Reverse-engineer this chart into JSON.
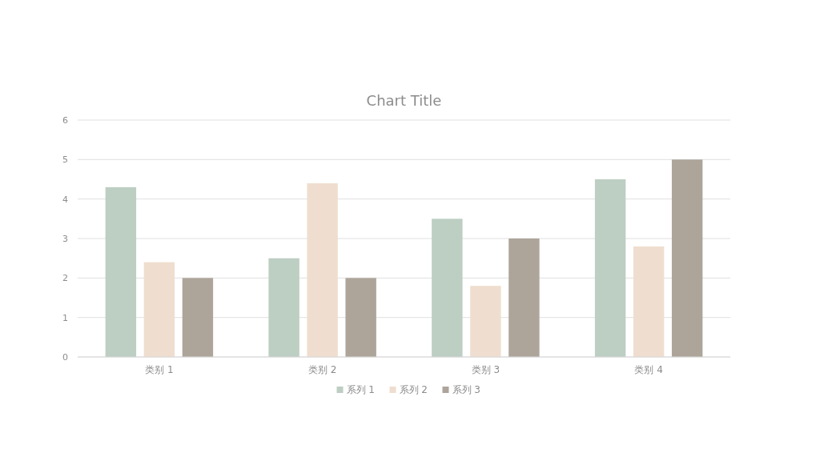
{
  "chart_data": {
    "type": "bar",
    "title": "Chart Title",
    "categories": [
      "类别 1",
      "类别 2",
      "类别 3",
      "类别 4"
    ],
    "series": [
      {
        "name": "系列 1",
        "color": "#bdcec3",
        "values": [
          4.3,
          2.5,
          3.5,
          4.5
        ]
      },
      {
        "name": "系列 2",
        "color": "#efdecf",
        "values": [
          2.4,
          4.4,
          1.8,
          2.8
        ]
      },
      {
        "name": "系列 3",
        "color": "#ada59a",
        "values": [
          2,
          2,
          3,
          5
        ]
      }
    ],
    "ylim": [
      0,
      6
    ],
    "yticks": [
      0,
      1,
      2,
      3,
      4,
      5,
      6
    ],
    "grid": "y",
    "legend": "bottom"
  }
}
